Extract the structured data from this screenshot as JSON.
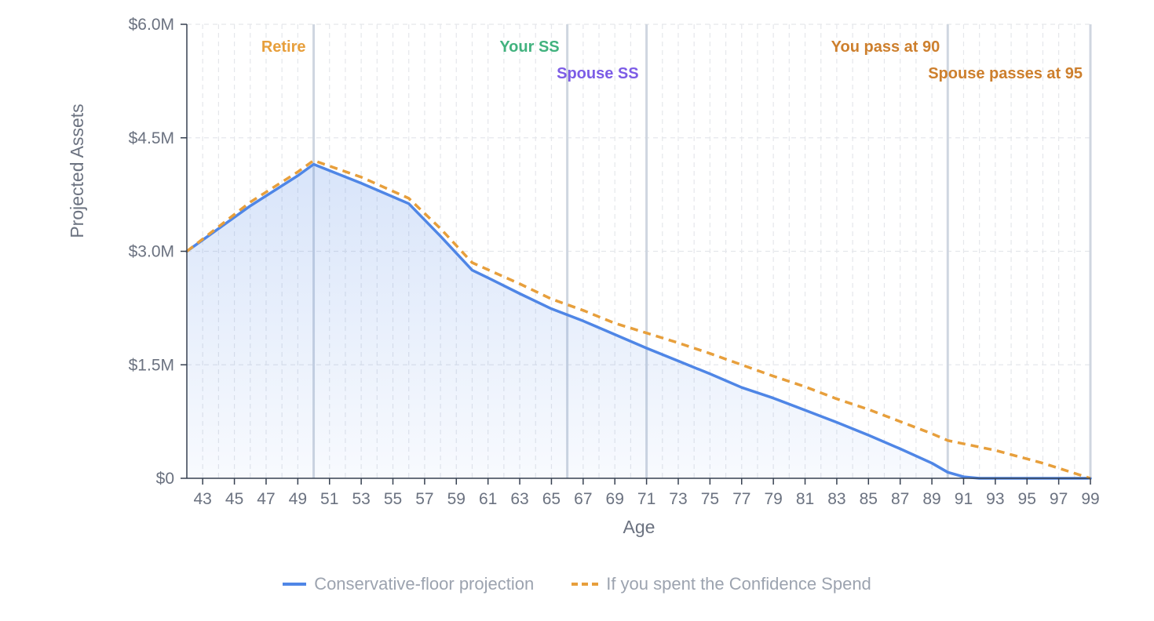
{
  "chart_data": {
    "type": "line",
    "xlabel": "Age",
    "ylabel": "Projected Assets",
    "xlim": [
      42,
      99
    ],
    "ylim": [
      0,
      6000000
    ],
    "x_ticks": [
      43,
      45,
      47,
      49,
      51,
      53,
      55,
      57,
      59,
      61,
      63,
      65,
      67,
      69,
      71,
      73,
      75,
      77,
      79,
      81,
      83,
      85,
      87,
      89,
      91,
      93,
      95,
      97,
      99
    ],
    "y_ticks": [
      {
        "value": 0,
        "label": "$0"
      },
      {
        "value": 1500000,
        "label": "$1.5M"
      },
      {
        "value": 3000000,
        "label": "$3.0M"
      },
      {
        "value": 4500000,
        "label": "$4.5M"
      },
      {
        "value": 6000000,
        "label": "$6.0M"
      }
    ],
    "grid": true,
    "legend_position": "bottom-center",
    "series": [
      {
        "name": "Conservative-floor projection",
        "color": "#4f86e6",
        "style": "solid",
        "fill": true,
        "points": [
          [
            42,
            3000000
          ],
          [
            46,
            3600000
          ],
          [
            49,
            4000000
          ],
          [
            50,
            4150000
          ],
          [
            53,
            3900000
          ],
          [
            56,
            3630000
          ],
          [
            58,
            3200000
          ],
          [
            60,
            2750000
          ],
          [
            61,
            2650000
          ],
          [
            63,
            2440000
          ],
          [
            65,
            2240000
          ],
          [
            67,
            2080000
          ],
          [
            69,
            1900000
          ],
          [
            71,
            1720000
          ],
          [
            73,
            1550000
          ],
          [
            75,
            1380000
          ],
          [
            77,
            1200000
          ],
          [
            79,
            1060000
          ],
          [
            81,
            900000
          ],
          [
            83,
            740000
          ],
          [
            85,
            570000
          ],
          [
            87,
            390000
          ],
          [
            89,
            200000
          ],
          [
            90,
            80000
          ],
          [
            91,
            20000
          ],
          [
            92,
            0
          ],
          [
            99,
            0
          ]
        ]
      },
      {
        "name": "If you spent the Confidence Spend",
        "color": "#e79f3c",
        "style": "dashed",
        "fill": false,
        "points": [
          [
            42,
            3000000
          ],
          [
            46,
            3650000
          ],
          [
            49,
            4050000
          ],
          [
            50,
            4200000
          ],
          [
            53,
            3980000
          ],
          [
            56,
            3700000
          ],
          [
            58,
            3300000
          ],
          [
            60,
            2850000
          ],
          [
            63,
            2570000
          ],
          [
            65,
            2370000
          ],
          [
            67,
            2220000
          ],
          [
            69,
            2050000
          ],
          [
            71,
            1920000
          ],
          [
            73,
            1790000
          ],
          [
            75,
            1650000
          ],
          [
            77,
            1500000
          ],
          [
            79,
            1350000
          ],
          [
            81,
            1210000
          ],
          [
            83,
            1050000
          ],
          [
            85,
            910000
          ],
          [
            87,
            750000
          ],
          [
            89,
            590000
          ],
          [
            90,
            500000
          ],
          [
            93,
            370000
          ],
          [
            96,
            200000
          ],
          [
            99,
            0
          ]
        ]
      }
    ],
    "markers": [
      {
        "age": 50,
        "label": "Retire",
        "color": "#e79f3c",
        "row": 1
      },
      {
        "age": 66,
        "label": "Your SS",
        "color": "#41b27e",
        "row": 1
      },
      {
        "age": 71,
        "label": "Spouse SS",
        "color": "#7c5ce6",
        "row": 2
      },
      {
        "age": 90,
        "label": "You pass at 90",
        "color": "#cd7f2d",
        "row": 1
      },
      {
        "age": 99,
        "label": "Spouse passes at 95",
        "color": "#cd7f2d",
        "row": 2
      }
    ]
  }
}
